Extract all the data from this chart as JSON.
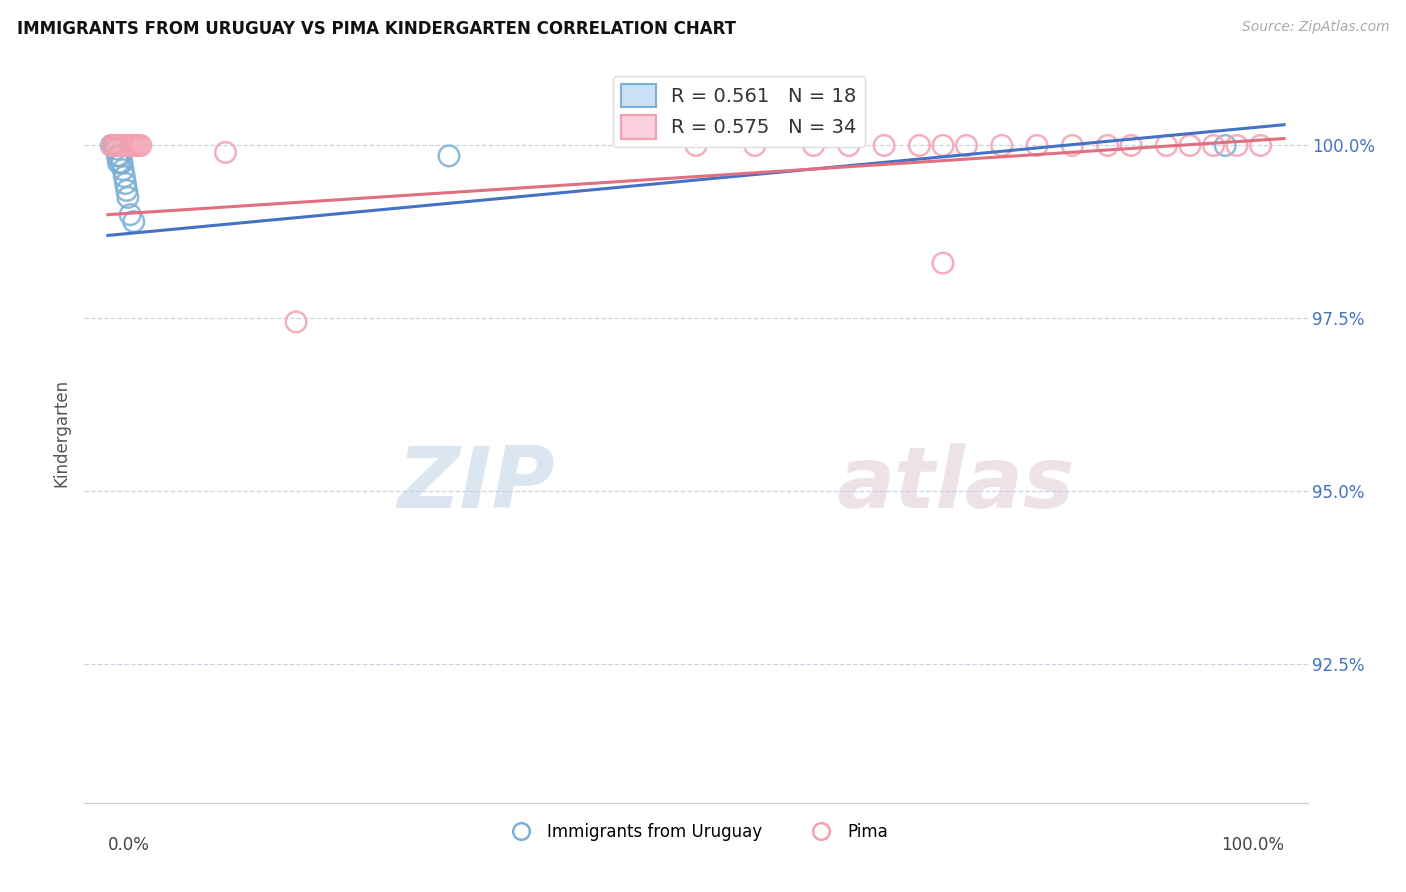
{
  "title": "IMMIGRANTS FROM URUGUAY VS PIMA KINDERGARTEN CORRELATION CHART",
  "source": "Source: ZipAtlas.com",
  "ylabel": "Kindergarten",
  "ytick_labels": [
    "100.0%",
    "97.5%",
    "95.0%",
    "92.5%"
  ],
  "ytick_values": [
    1.0,
    0.975,
    0.95,
    0.925
  ],
  "xlim": [
    -0.02,
    1.02
  ],
  "ylim": [
    0.905,
    1.012
  ],
  "legend_label1": "R = 0.561   N = 18",
  "legend_label2": "R = 0.575   N = 34",
  "color_blue": "#7bafd4",
  "color_pink": "#f4a0b0",
  "line_blue": "#4472c4",
  "line_pink": "#e07080",
  "background_color": "#ffffff",
  "grid_color": "#c8d4e4",
  "watermark_zip": "ZIP",
  "watermark_atlas": "atlas",
  "blue_x": [
    0.003,
    0.005,
    0.006,
    0.007,
    0.008,
    0.009,
    0.01,
    0.011,
    0.012,
    0.013,
    0.014,
    0.015,
    0.016,
    0.017,
    0.019,
    0.022,
    0.29,
    0.95
  ],
  "blue_y": [
    1.0,
    1.0,
    1.0,
    0.9995,
    0.9985,
    0.9975,
    0.9985,
    0.9975,
    0.9975,
    0.9965,
    0.9955,
    0.9945,
    0.9935,
    0.9925,
    0.99,
    0.989,
    0.9985,
    1.0
  ],
  "pink_x": [
    0.003,
    0.006,
    0.008,
    0.01,
    0.012,
    0.014,
    0.016,
    0.018,
    0.02,
    0.022,
    0.024,
    0.026,
    0.028,
    0.1,
    0.16,
    0.5,
    0.55,
    0.6,
    0.63,
    0.66,
    0.69,
    0.71,
    0.73,
    0.76,
    0.79,
    0.82,
    0.85,
    0.87,
    0.9,
    0.92,
    0.94,
    0.96,
    0.98,
    0.71
  ],
  "pink_y": [
    1.0,
    1.0,
    1.0,
    1.0,
    1.0,
    1.0,
    1.0,
    1.0,
    1.0,
    1.0,
    1.0,
    1.0,
    1.0,
    0.999,
    0.9745,
    1.0,
    1.0,
    1.0,
    1.0,
    1.0,
    1.0,
    1.0,
    1.0,
    1.0,
    1.0,
    1.0,
    1.0,
    1.0,
    1.0,
    1.0,
    1.0,
    1.0,
    1.0,
    0.983
  ],
  "blue_line_x": [
    0.0,
    1.0
  ],
  "blue_line_y": [
    0.987,
    1.003
  ],
  "pink_line_x": [
    0.0,
    1.0
  ],
  "pink_line_y": [
    0.99,
    1.001
  ]
}
